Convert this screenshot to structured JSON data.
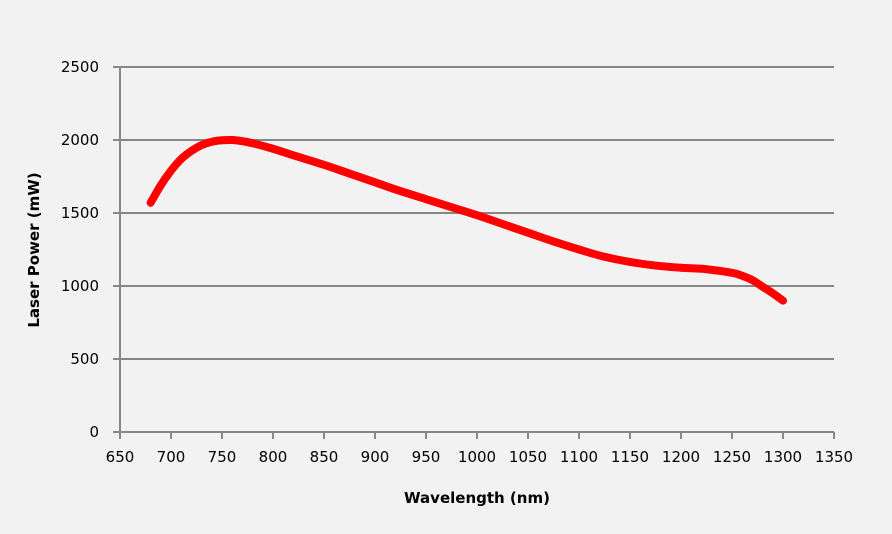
{
  "chart_data": {
    "type": "line",
    "title": "",
    "xlabel": "Wavelength (nm)",
    "ylabel": "Laser Power (mW)",
    "xlim": [
      650,
      1350
    ],
    "ylim": [
      0,
      2500
    ],
    "xticks": [
      650,
      700,
      750,
      800,
      850,
      900,
      950,
      1000,
      1050,
      1100,
      1150,
      1200,
      1250,
      1300,
      1350
    ],
    "yticks": [
      0,
      500,
      1000,
      1500,
      2000,
      2500
    ],
    "grid": "horizontal",
    "legend": "none",
    "series": [
      {
        "name": "Laser Power",
        "color": "#ff0000",
        "x": [
          680,
          690,
          700,
          710,
          720,
          730,
          740,
          750,
          760,
          770,
          780,
          800,
          820,
          850,
          875,
          900,
          925,
          950,
          975,
          1000,
          1025,
          1050,
          1075,
          1100,
          1125,
          1150,
          1175,
          1200,
          1225,
          1250,
          1260,
          1270,
          1280,
          1290,
          1300
        ],
        "y": [
          1570,
          1690,
          1790,
          1870,
          1925,
          1965,
          1988,
          1998,
          2000,
          1992,
          1978,
          1940,
          1895,
          1830,
          1770,
          1710,
          1650,
          1595,
          1540,
          1485,
          1425,
          1365,
          1305,
          1250,
          1200,
          1165,
          1140,
          1125,
          1115,
          1090,
          1070,
          1040,
          995,
          950,
          900
        ]
      }
    ]
  },
  "colors": {
    "background": "#f2f2f2",
    "grid": "#878787",
    "series": "#ff0000"
  }
}
